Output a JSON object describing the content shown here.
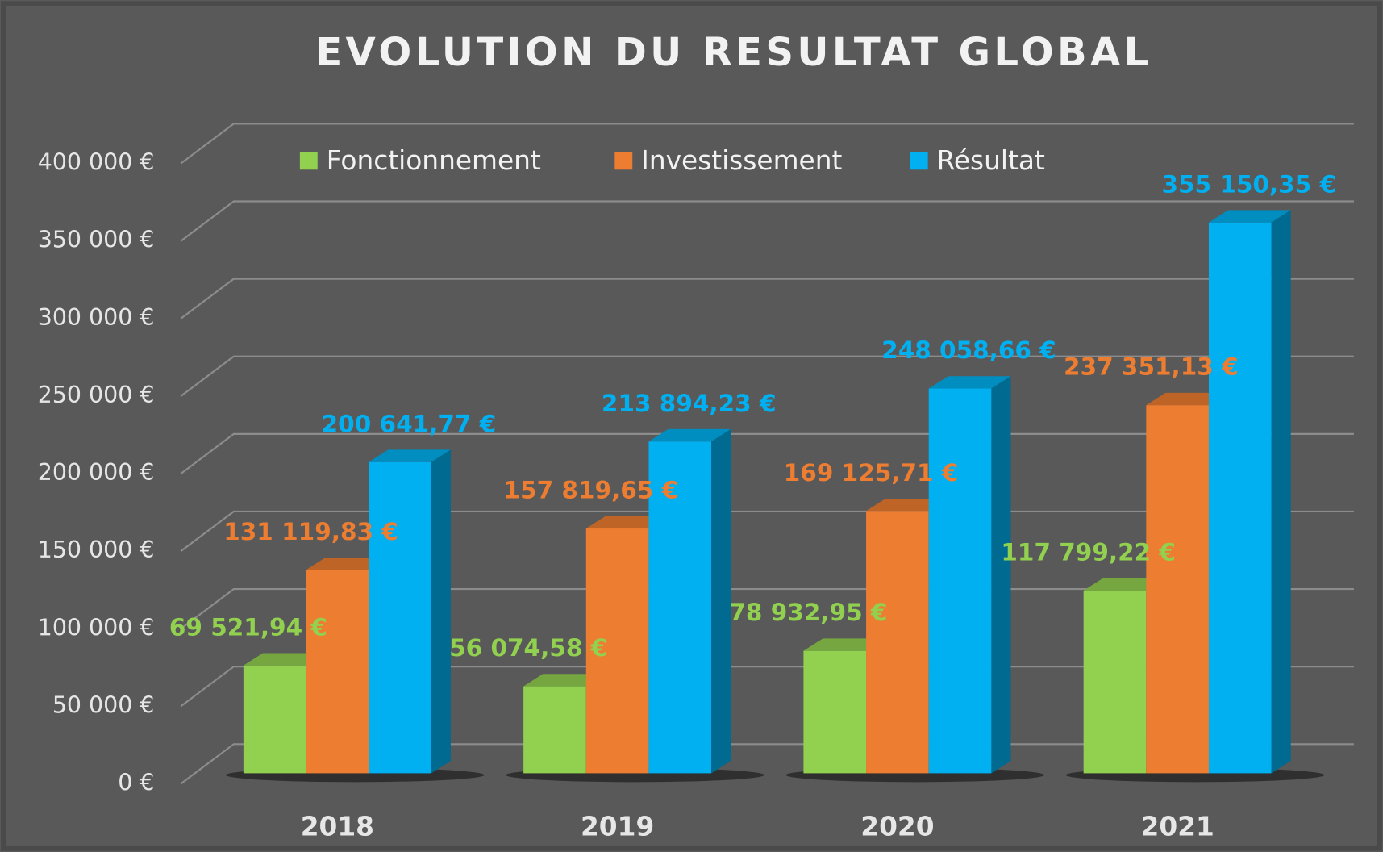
{
  "chart_data": {
    "type": "bar3d",
    "title": "EVOLUTION DU RESULTAT GLOBAL",
    "categories": [
      "2018",
      "2019",
      "2020",
      "2021"
    ],
    "series": [
      {
        "name": "Fonctionnement",
        "color": "#92d050",
        "values": [
          69521.94,
          56074.58,
          78932.95,
          117799.22
        ],
        "value_labels": [
          "69 521,94 €",
          "56 074,58 €",
          "78 932,95 €",
          "117 799,22 €"
        ]
      },
      {
        "name": "Investissement",
        "color": "#ed7d31",
        "values": [
          131119.83,
          157819.65,
          169125.71,
          237351.13
        ],
        "value_labels": [
          "131 119,83 €",
          "157 819,65 €",
          "169 125,71 €",
          "237 351,13 €"
        ]
      },
      {
        "name": "Résultat",
        "color": "#00b0f0",
        "values": [
          200641.77,
          213894.23,
          248058.66,
          355150.35
        ],
        "value_labels": [
          "200 641,77 €",
          "213 894,23 €",
          "248 058,66 €",
          "355 150,35 €"
        ]
      }
    ],
    "ylim": [
      0,
      400000
    ],
    "yticks": [
      {
        "value": 0,
        "label": "0 €"
      },
      {
        "value": 50000,
        "label": "50 000 €"
      },
      {
        "value": 100000,
        "label": "100 000 €"
      },
      {
        "value": 150000,
        "label": "150 000 €"
      },
      {
        "value": 200000,
        "label": "200 000 €"
      },
      {
        "value": 250000,
        "label": "250 000 €"
      },
      {
        "value": 300000,
        "label": "300 000 €"
      },
      {
        "value": 350000,
        "label": "350 000 €"
      },
      {
        "value": 400000,
        "label": "400 000 €"
      }
    ],
    "grid": true,
    "legend": "top"
  }
}
